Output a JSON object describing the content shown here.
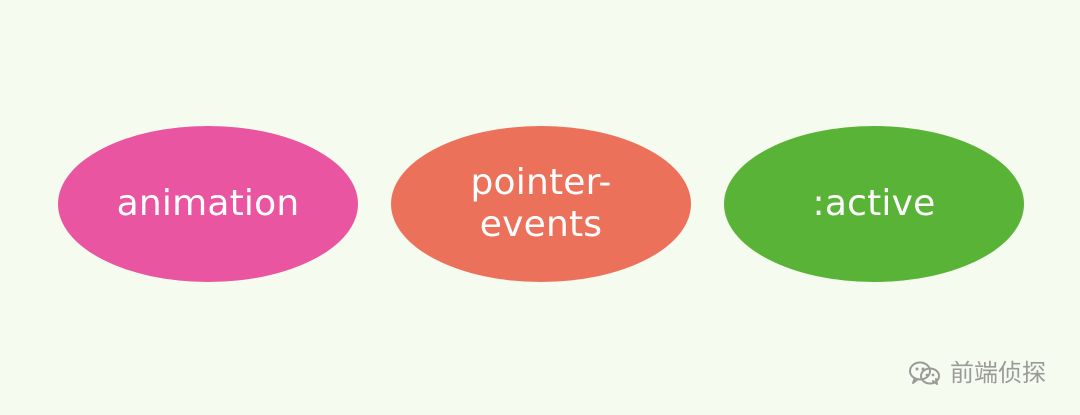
{
  "diagram": {
    "nodes": [
      {
        "label": "animation",
        "color": "#e955a0"
      },
      {
        "label": "pointer-\nevents",
        "color": "#ec715a"
      },
      {
        "label": ":active",
        "color": "#59b337"
      }
    ]
  },
  "watermark": {
    "icon": "wechat-icon",
    "text": "前端侦探"
  },
  "colors": {
    "background": "#f6fbef",
    "text": "#ffffff",
    "watermark": "#9a9a9a"
  }
}
